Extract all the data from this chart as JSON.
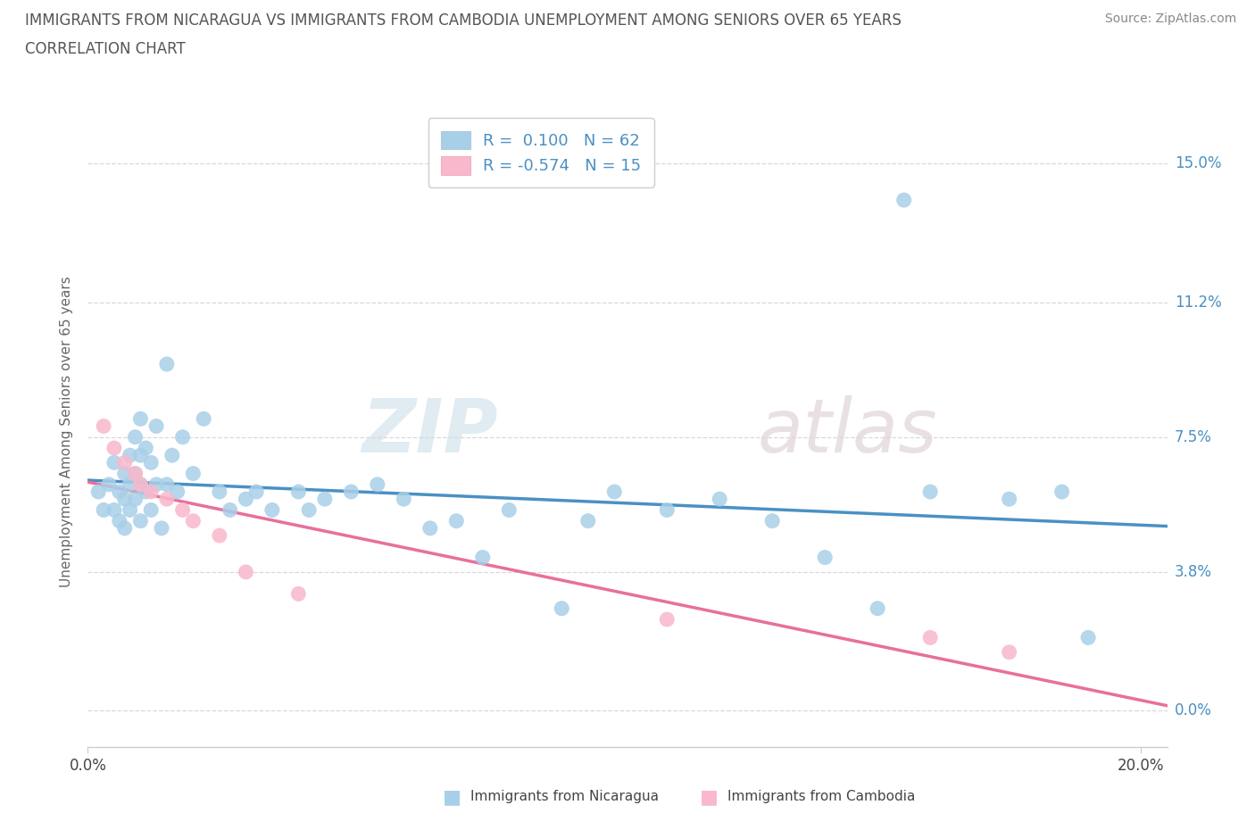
{
  "title_line1": "IMMIGRANTS FROM NICARAGUA VS IMMIGRANTS FROM CAMBODIA UNEMPLOYMENT AMONG SENIORS OVER 65 YEARS",
  "title_line2": "CORRELATION CHART",
  "source": "Source: ZipAtlas.com",
  "ylabel": "Unemployment Among Seniors over 65 years",
  "xlabel_nicaragua": "Immigrants from Nicaragua",
  "xlabel_cambodia": "Immigrants from Cambodia",
  "watermark_zip": "ZIP",
  "watermark_atlas": "atlas",
  "xlim": [
    0.0,
    0.205
  ],
  "ylim": [
    -0.01,
    0.163
  ],
  "yticks": [
    0.0,
    0.038,
    0.075,
    0.112,
    0.15
  ],
  "ytick_labels": [
    "0.0%",
    "3.8%",
    "7.5%",
    "11.2%",
    "15.0%"
  ],
  "xticks": [
    0.0,
    0.2
  ],
  "xtick_labels": [
    "0.0%",
    "20.0%"
  ],
  "nicaragua_R": 0.1,
  "nicaragua_N": 62,
  "cambodia_R": -0.574,
  "cambodia_N": 15,
  "blue_color": "#a8cfe8",
  "pink_color": "#f9b8cb",
  "blue_line_color": "#4a90c4",
  "pink_line_color": "#e8709a",
  "legend_text_color": "#4a90c4",
  "title_color": "#555555",
  "source_color": "#888888",
  "ylabel_color": "#666666",
  "grid_color": "#d8d8d8",
  "nicaragua_x": [
    0.002,
    0.003,
    0.004,
    0.005,
    0.005,
    0.006,
    0.006,
    0.007,
    0.007,
    0.007,
    0.008,
    0.008,
    0.008,
    0.009,
    0.009,
    0.009,
    0.01,
    0.01,
    0.01,
    0.01,
    0.011,
    0.011,
    0.012,
    0.012,
    0.013,
    0.013,
    0.014,
    0.015,
    0.015,
    0.016,
    0.017,
    0.018,
    0.02,
    0.022,
    0.025,
    0.027,
    0.03,
    0.032,
    0.035,
    0.04,
    0.042,
    0.045,
    0.05,
    0.055,
    0.06,
    0.065,
    0.07,
    0.075,
    0.08,
    0.09,
    0.095,
    0.1,
    0.11,
    0.12,
    0.13,
    0.14,
    0.15,
    0.16,
    0.175,
    0.185,
    0.155,
    0.19
  ],
  "nicaragua_y": [
    0.06,
    0.055,
    0.062,
    0.068,
    0.055,
    0.06,
    0.052,
    0.065,
    0.058,
    0.05,
    0.07,
    0.062,
    0.055,
    0.075,
    0.065,
    0.058,
    0.08,
    0.07,
    0.062,
    0.052,
    0.072,
    0.06,
    0.068,
    0.055,
    0.078,
    0.062,
    0.05,
    0.095,
    0.062,
    0.07,
    0.06,
    0.075,
    0.065,
    0.08,
    0.06,
    0.055,
    0.058,
    0.06,
    0.055,
    0.06,
    0.055,
    0.058,
    0.06,
    0.062,
    0.058,
    0.05,
    0.052,
    0.042,
    0.055,
    0.028,
    0.052,
    0.06,
    0.055,
    0.058,
    0.052,
    0.042,
    0.028,
    0.06,
    0.058,
    0.06,
    0.14,
    0.02
  ],
  "cambodia_x": [
    0.003,
    0.005,
    0.007,
    0.009,
    0.01,
    0.012,
    0.015,
    0.018,
    0.02,
    0.025,
    0.03,
    0.04,
    0.11,
    0.16,
    0.175
  ],
  "cambodia_y": [
    0.078,
    0.072,
    0.068,
    0.065,
    0.062,
    0.06,
    0.058,
    0.055,
    0.052,
    0.048,
    0.038,
    0.032,
    0.025,
    0.02,
    0.016
  ]
}
